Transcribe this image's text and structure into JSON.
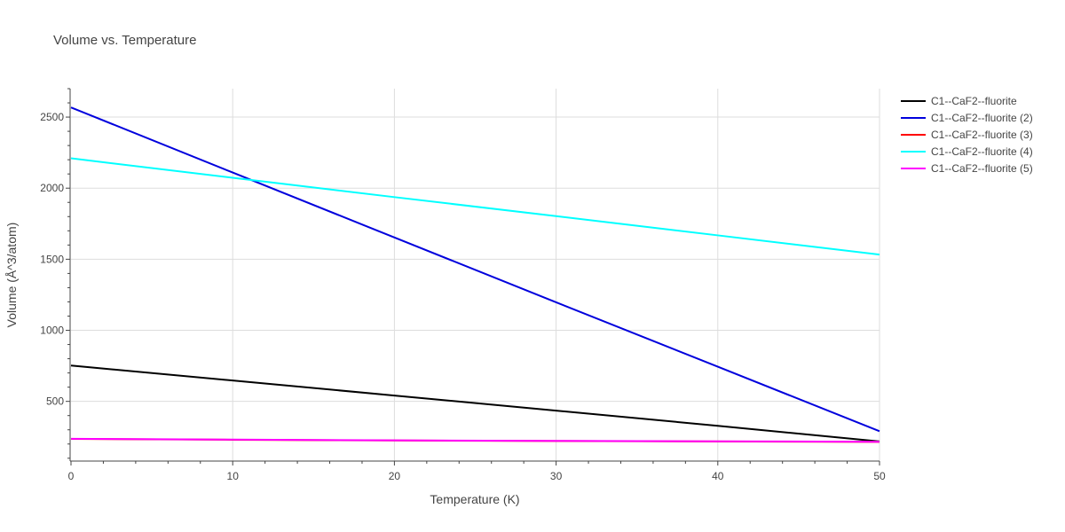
{
  "chart_data": {
    "type": "line",
    "title": "Volume vs. Temperature",
    "xlabel": "Temperature (K)",
    "ylabel": "Volume (Å^3/atom)",
    "xlim": [
      0,
      50
    ],
    "ylim": [
      80,
      2700
    ],
    "x_ticks": [
      0,
      10,
      20,
      30,
      40,
      50
    ],
    "y_ticks": [
      500,
      1000,
      1500,
      2000,
      2500
    ],
    "x_minor_step": 2,
    "y_minor_step": 100,
    "grid": true,
    "legend_position": "top-right",
    "series": [
      {
        "name": "C1--CaF2--fluorite",
        "color": "#000000",
        "x": [
          0,
          10,
          20,
          30,
          40,
          50
        ],
        "y": [
          752,
          647,
          541,
          435,
          328,
          218
        ]
      },
      {
        "name": "C1--CaF2--fluorite (2)",
        "color": "#0000dd",
        "x": [
          0,
          10,
          20,
          30,
          40,
          50
        ],
        "y": [
          2568,
          2110,
          1653,
          1197,
          744,
          290
        ]
      },
      {
        "name": "C1--CaF2--fluorite (3)",
        "color": "#ff0000",
        "x": [
          0,
          10,
          20,
          30,
          40,
          50
        ],
        "y": [
          236,
          230,
          225,
          221,
          218,
          215
        ]
      },
      {
        "name": "C1--CaF2--fluorite (4)",
        "color": "#00ffff",
        "x": [
          0,
          10,
          20,
          30,
          40,
          50
        ],
        "y": [
          2210,
          2073,
          1937,
          1803,
          1668,
          1533
        ]
      },
      {
        "name": "C1--CaF2--fluorite (5)",
        "color": "#ff00ff",
        "x": [
          0,
          10,
          20,
          30,
          40,
          50
        ],
        "y": [
          237,
          231,
          226,
          222,
          219,
          216
        ]
      }
    ]
  }
}
